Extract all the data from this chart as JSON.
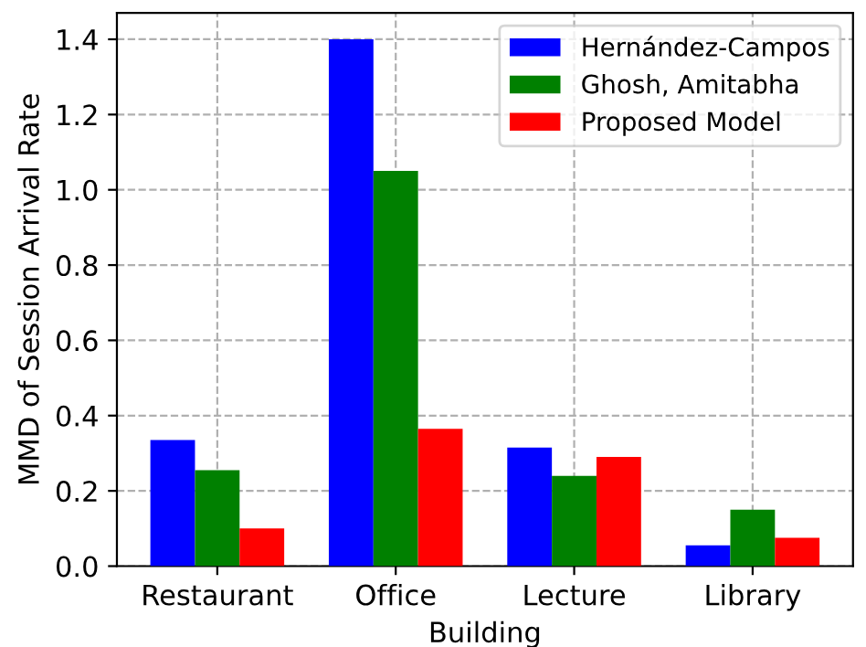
{
  "chart_data": {
    "type": "bar",
    "xlabel": "Building",
    "ylabel": "MMD of Session Arrival Rate",
    "categories": [
      "Restaurant",
      "Office",
      "Lecture",
      "Library"
    ],
    "series": [
      {
        "name": "Hernández-Campos",
        "color": "#0000ff",
        "values": [
          0.335,
          1.4,
          0.315,
          0.055
        ]
      },
      {
        "name": "Ghosh, Amitabha",
        "color": "#008000",
        "values": [
          0.255,
          1.05,
          0.24,
          0.15
        ]
      },
      {
        "name": "Proposed Model",
        "color": "#ff0000",
        "values": [
          0.1,
          0.365,
          0.29,
          0.075
        ]
      }
    ],
    "ylim": [
      0,
      1.47
    ],
    "yticks": [
      {
        "value": 0,
        "label": "0.0"
      },
      0.2,
      0.4,
      0.6,
      0.8,
      {
        "value": 1,
        "label": "1.0"
      },
      1.2,
      1.4
    ],
    "grid": true,
    "legend": "top right",
    "line_style": "dashed"
  }
}
